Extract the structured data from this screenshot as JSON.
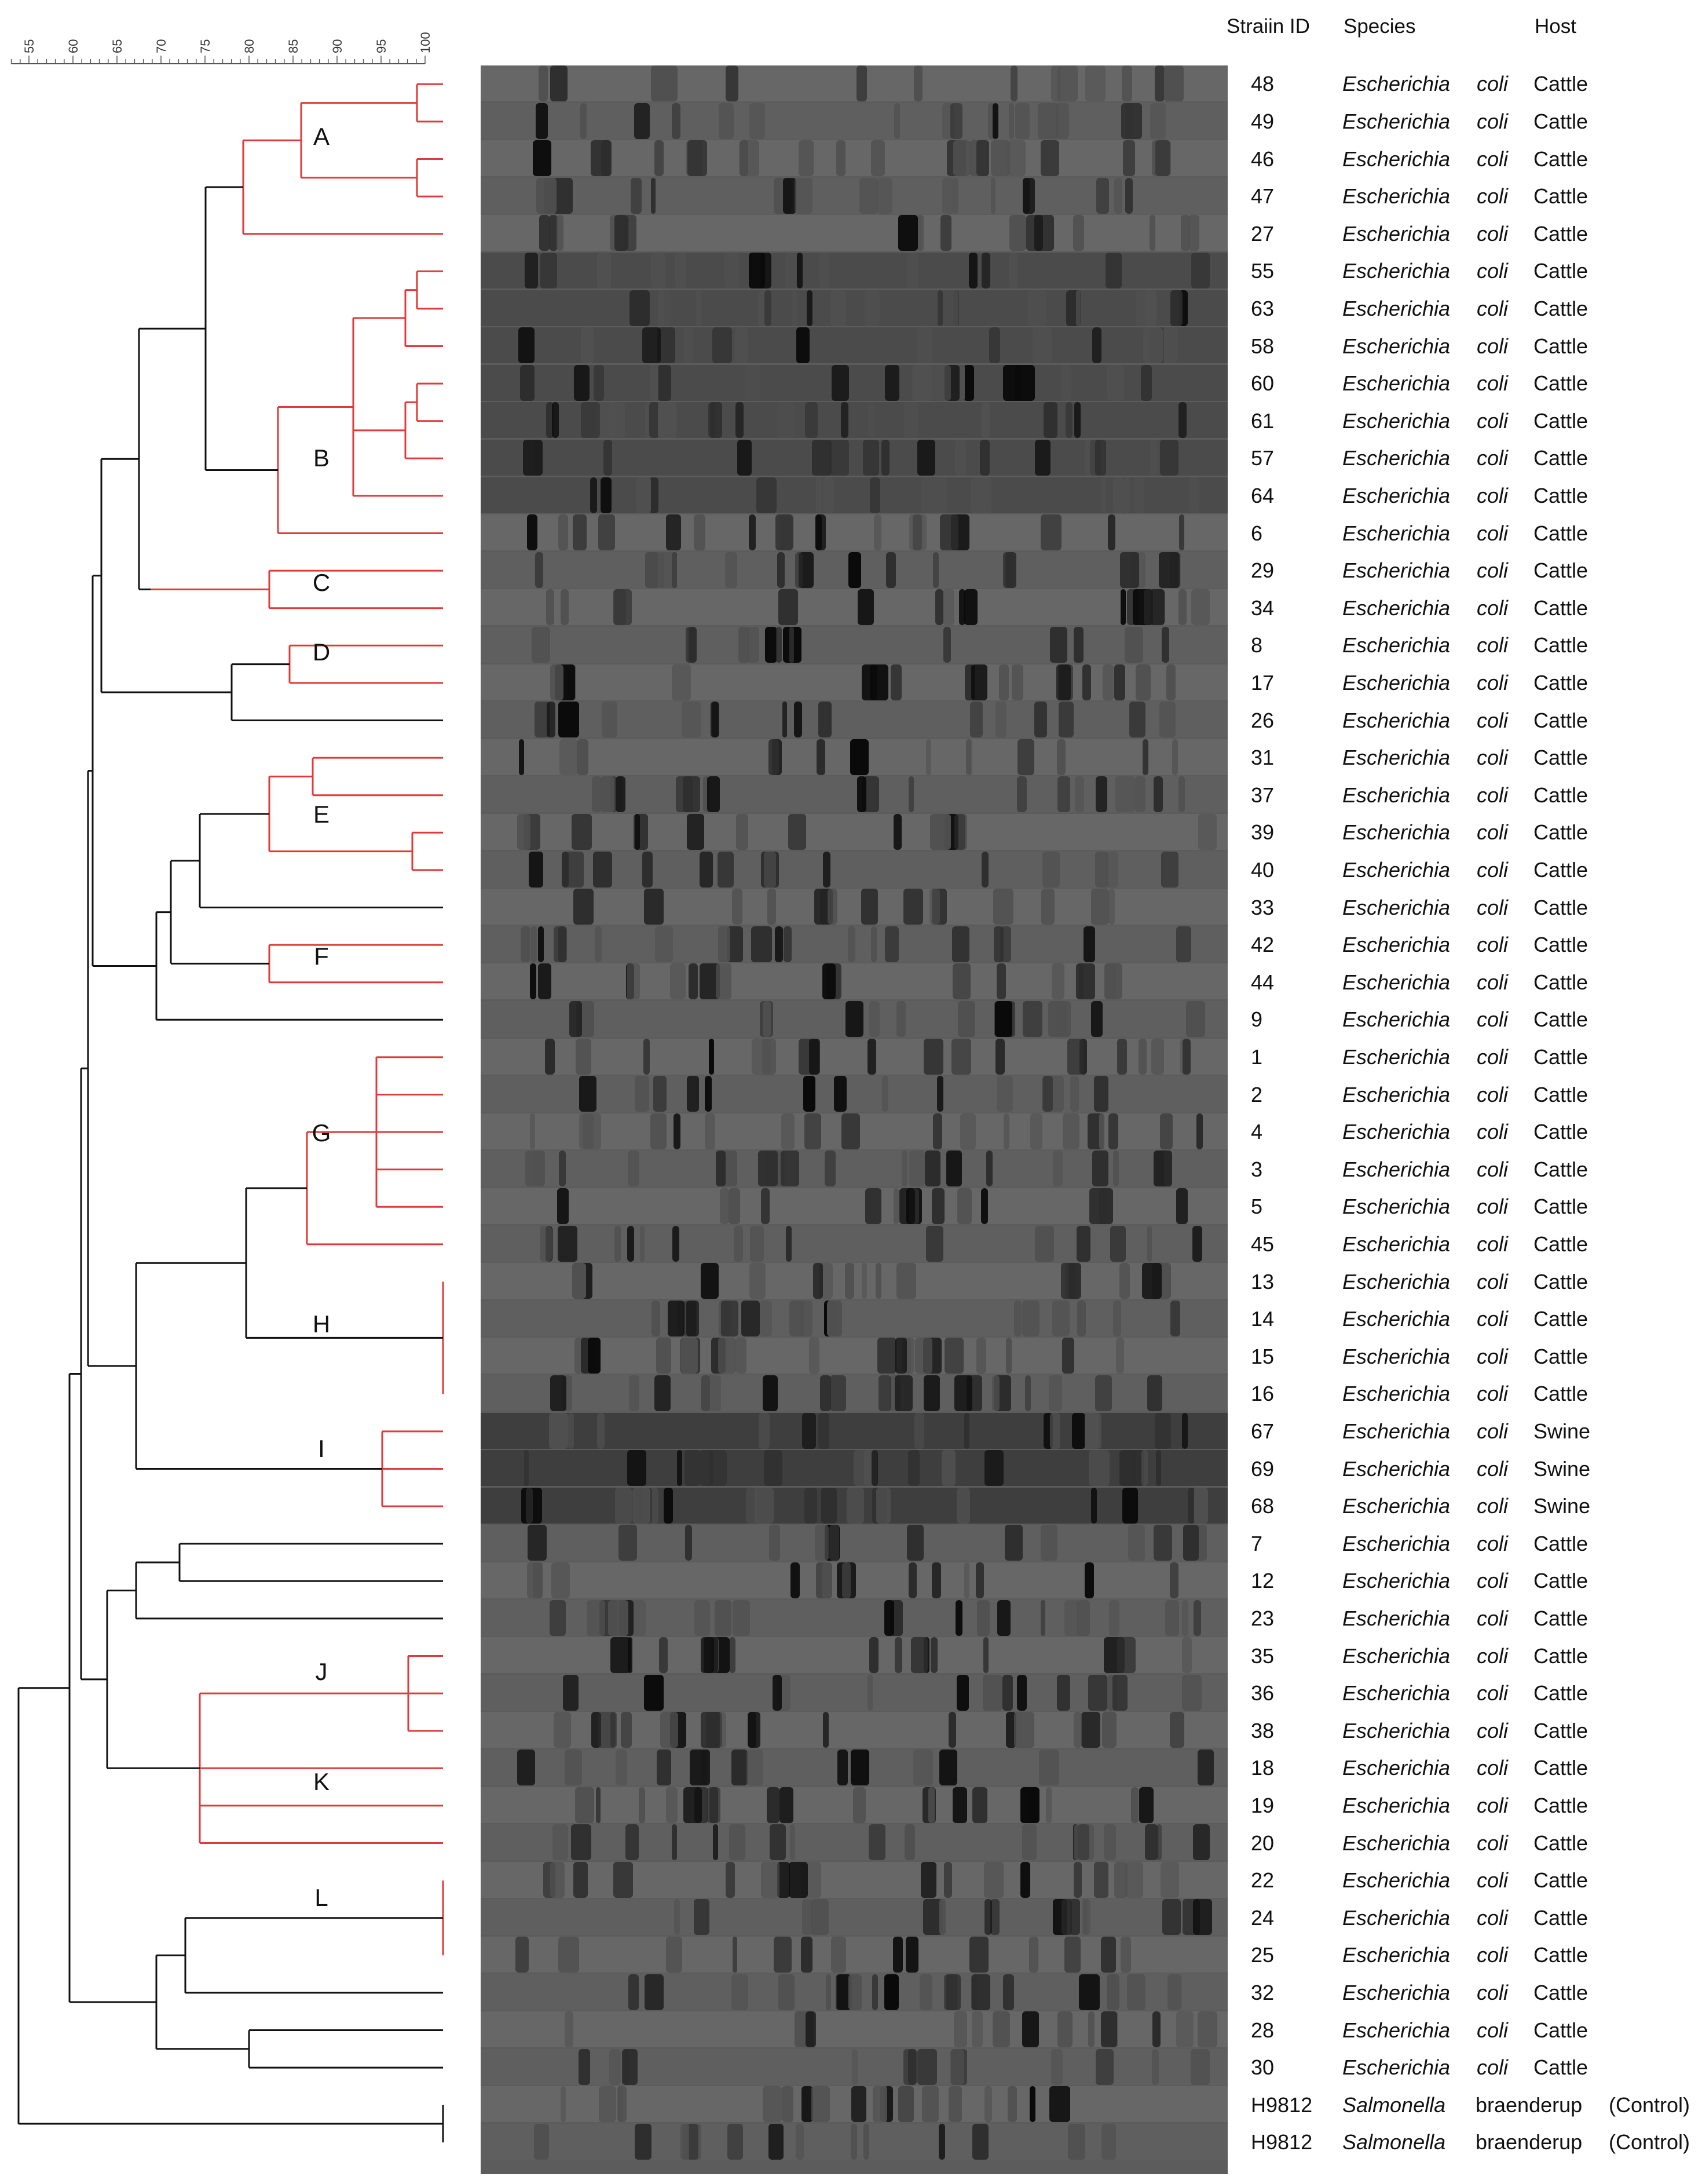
{
  "headers": {
    "strain_id": "Straiin ID",
    "species": "Species",
    "host": "Host"
  },
  "scale": {
    "ticks": [
      "55",
      "60",
      "65",
      "70",
      "75",
      "80",
      "85",
      "90",
      "95",
      "100"
    ]
  },
  "clusters": [
    "A",
    "B",
    "C",
    "D",
    "E",
    "F",
    "G",
    "H",
    "I",
    "J",
    "K",
    "L"
  ],
  "rows": [
    {
      "id": "48",
      "genus": "Escherichia",
      "species": "coli",
      "host": "Cattle"
    },
    {
      "id": "49",
      "genus": "Escherichia",
      "species": "coli",
      "host": "Cattle"
    },
    {
      "id": "46",
      "genus": "Escherichia",
      "species": "coli",
      "host": "Cattle"
    },
    {
      "id": "47",
      "genus": "Escherichia",
      "species": "coli",
      "host": "Cattle"
    },
    {
      "id": "27",
      "genus": "Escherichia",
      "species": "coli",
      "host": "Cattle"
    },
    {
      "id": "55",
      "genus": "Escherichia",
      "species": "coli",
      "host": "Cattle"
    },
    {
      "id": "63",
      "genus": "Escherichia",
      "species": "coli",
      "host": "Cattle"
    },
    {
      "id": "58",
      "genus": "Escherichia",
      "species": "coli",
      "host": "Cattle"
    },
    {
      "id": "60",
      "genus": "Escherichia",
      "species": "coli",
      "host": "Cattle"
    },
    {
      "id": "61",
      "genus": "Escherichia",
      "species": "coli",
      "host": "Cattle"
    },
    {
      "id": "57",
      "genus": "Escherichia",
      "species": "coli",
      "host": "Cattle"
    },
    {
      "id": "64",
      "genus": "Escherichia",
      "species": "coli",
      "host": "Cattle"
    },
    {
      "id": "6",
      "genus": "Escherichia",
      "species": "coli",
      "host": "Cattle"
    },
    {
      "id": "29",
      "genus": "Escherichia",
      "species": "coli",
      "host": "Cattle"
    },
    {
      "id": "34",
      "genus": "Escherichia",
      "species": "coli",
      "host": "Cattle"
    },
    {
      "id": "8",
      "genus": "Escherichia",
      "species": "coli",
      "host": "Cattle"
    },
    {
      "id": "17",
      "genus": "Escherichia",
      "species": "coli",
      "host": "Cattle"
    },
    {
      "id": "26",
      "genus": "Escherichia",
      "species": "coli",
      "host": "Cattle"
    },
    {
      "id": "31",
      "genus": "Escherichia",
      "species": "coli",
      "host": "Cattle"
    },
    {
      "id": "37",
      "genus": "Escherichia",
      "species": "coli",
      "host": "Cattle"
    },
    {
      "id": "39",
      "genus": "Escherichia",
      "species": "coli",
      "host": "Cattle"
    },
    {
      "id": "40",
      "genus": "Escherichia",
      "species": "coli",
      "host": "Cattle"
    },
    {
      "id": "33",
      "genus": "Escherichia",
      "species": "coli",
      "host": "Cattle"
    },
    {
      "id": "42",
      "genus": "Escherichia",
      "species": "coli",
      "host": "Cattle"
    },
    {
      "id": "44",
      "genus": "Escherichia",
      "species": "coli",
      "host": "Cattle"
    },
    {
      "id": "9",
      "genus": "Escherichia",
      "species": "coli",
      "host": "Cattle"
    },
    {
      "id": "1",
      "genus": "Escherichia",
      "species": "coli",
      "host": "Cattle"
    },
    {
      "id": "2",
      "genus": "Escherichia",
      "species": "coli",
      "host": "Cattle"
    },
    {
      "id": "4",
      "genus": "Escherichia",
      "species": "coli",
      "host": "Cattle"
    },
    {
      "id": "3",
      "genus": "Escherichia",
      "species": "coli",
      "host": "Cattle"
    },
    {
      "id": "5",
      "genus": "Escherichia",
      "species": "coli",
      "host": "Cattle"
    },
    {
      "id": "45",
      "genus": "Escherichia",
      "species": "coli",
      "host": "Cattle"
    },
    {
      "id": "13",
      "genus": "Escherichia",
      "species": "coli",
      "host": "Cattle"
    },
    {
      "id": "14",
      "genus": "Escherichia",
      "species": "coli",
      "host": "Cattle"
    },
    {
      "id": "15",
      "genus": "Escherichia",
      "species": "coli",
      "host": "Cattle"
    },
    {
      "id": "16",
      "genus": "Escherichia",
      "species": "coli",
      "host": "Cattle"
    },
    {
      "id": "67",
      "genus": "Escherichia",
      "species": "coli",
      "host": "Swine"
    },
    {
      "id": "69",
      "genus": "Escherichia",
      "species": "coli",
      "host": "Swine"
    },
    {
      "id": "68",
      "genus": "Escherichia",
      "species": "coli",
      "host": "Swine"
    },
    {
      "id": "7",
      "genus": "Escherichia",
      "species": "coli",
      "host": "Cattle"
    },
    {
      "id": "12",
      "genus": "Escherichia",
      "species": "coli",
      "host": "Cattle"
    },
    {
      "id": "23",
      "genus": "Escherichia",
      "species": "coli",
      "host": "Cattle"
    },
    {
      "id": "35",
      "genus": "Escherichia",
      "species": "coli",
      "host": "Cattle"
    },
    {
      "id": "36",
      "genus": "Escherichia",
      "species": "coli",
      "host": "Cattle"
    },
    {
      "id": "38",
      "genus": "Escherichia",
      "species": "coli",
      "host": "Cattle"
    },
    {
      "id": "18",
      "genus": "Escherichia",
      "species": "coli",
      "host": "Cattle"
    },
    {
      "id": "19",
      "genus": "Escherichia",
      "species": "coli",
      "host": "Cattle"
    },
    {
      "id": "20",
      "genus": "Escherichia",
      "species": "coli",
      "host": "Cattle"
    },
    {
      "id": "22",
      "genus": "Escherichia",
      "species": "coli",
      "host": "Cattle"
    },
    {
      "id": "24",
      "genus": "Escherichia",
      "species": "coli",
      "host": "Cattle"
    },
    {
      "id": "25",
      "genus": "Escherichia",
      "species": "coli",
      "host": "Cattle"
    },
    {
      "id": "32",
      "genus": "Escherichia",
      "species": "coli",
      "host": "Cattle"
    },
    {
      "id": "28",
      "genus": "Escherichia",
      "species": "coli",
      "host": "Cattle"
    },
    {
      "id": "30",
      "genus": "Escherichia",
      "species": "coli",
      "host": "Cattle"
    },
    {
      "id": "H9812",
      "genus": "Salmonella",
      "species": "braenderup",
      "host": "(Control)"
    },
    {
      "id": "H9812",
      "genus": "Salmonella",
      "species": "braenderup",
      "host": "(Control)"
    }
  ],
  "colors": {
    "cluster_line": "#e03a3a",
    "tree_line": "#111111",
    "gel_bg": "#5c5c5c"
  }
}
